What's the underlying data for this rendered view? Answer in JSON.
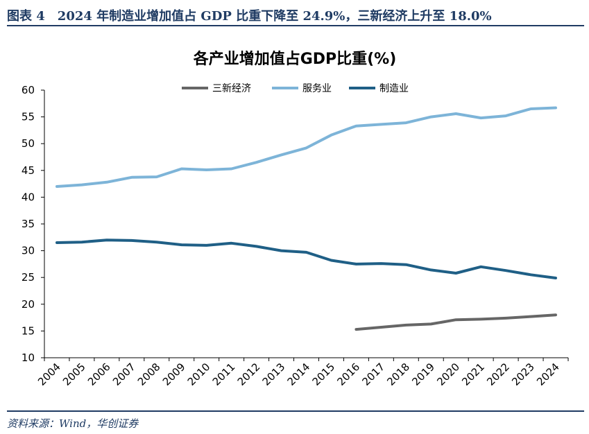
{
  "figure": {
    "title": "图表 4　2024 年制造业增加值占 GDP 比重下降至 24.9%，三新经济上升至 18.0%",
    "source": "资料来源：Wind，华创证券"
  },
  "chart_data": {
    "type": "line",
    "title": "各产业增加值占GDP比重(%)",
    "xlabel": "",
    "ylabel": "",
    "ylim": [
      10,
      60
    ],
    "yticks": [
      "10",
      "15",
      "20",
      "25",
      "30",
      "35",
      "40",
      "45",
      "50",
      "55",
      "60"
    ],
    "categories": [
      "2004",
      "2005",
      "2006",
      "2007",
      "2008",
      "2009",
      "2010",
      "2011",
      "2012",
      "2013",
      "2014",
      "2015",
      "2016",
      "2017",
      "2018",
      "2019",
      "2020",
      "2021",
      "2022",
      "2023",
      "2024"
    ],
    "legend_position": "top",
    "series": [
      {
        "name": "三新经济",
        "color": "#666666",
        "values": [
          null,
          null,
          null,
          null,
          null,
          null,
          null,
          null,
          null,
          null,
          null,
          null,
          15.3,
          15.7,
          16.1,
          16.3,
          17.1,
          17.2,
          17.4,
          17.7,
          18.0
        ]
      },
      {
        "name": "服务业",
        "color": "#7db4d8",
        "values": [
          42.0,
          42.3,
          42.8,
          43.7,
          43.8,
          45.3,
          45.1,
          45.3,
          46.5,
          47.9,
          49.2,
          51.6,
          53.3,
          53.6,
          53.9,
          55.0,
          55.6,
          54.8,
          55.2,
          56.5,
          56.7
        ]
      },
      {
        "name": "制造业",
        "color": "#1f5f86",
        "values": [
          31.5,
          31.6,
          32.0,
          31.9,
          31.6,
          31.1,
          31.0,
          31.4,
          30.8,
          30.0,
          29.7,
          28.2,
          27.5,
          27.6,
          27.4,
          26.4,
          25.8,
          27.0,
          26.3,
          25.5,
          24.9
        ]
      }
    ]
  }
}
